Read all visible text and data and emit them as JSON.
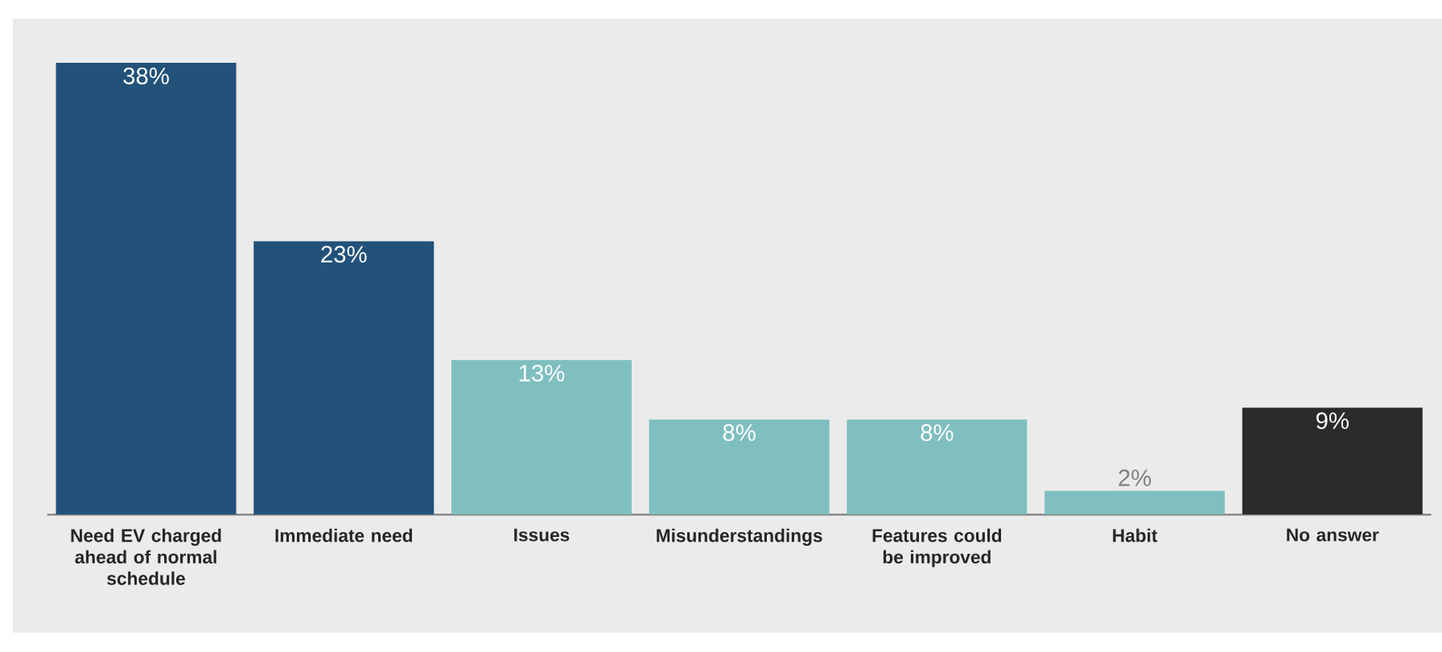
{
  "chart_data": {
    "type": "bar",
    "categories": [
      "Need EV charged ahead of normal schedule",
      "Immediate need",
      "Issues",
      "Misunderstandings",
      "Features could be improved",
      "Habit",
      "No answer"
    ],
    "values": [
      38,
      23,
      13,
      8,
      8,
      2,
      9
    ],
    "value_labels": [
      "38%",
      "23%",
      "13%",
      "8%",
      "8%",
      "2%",
      "9%"
    ],
    "colors": [
      "#22527a",
      "#22527a",
      "#80bfbf",
      "#80bfbf",
      "#80bfbf",
      "#80bfbf",
      "#2b2b2b"
    ],
    "grid": false,
    "tick_labels": "x"
  }
}
